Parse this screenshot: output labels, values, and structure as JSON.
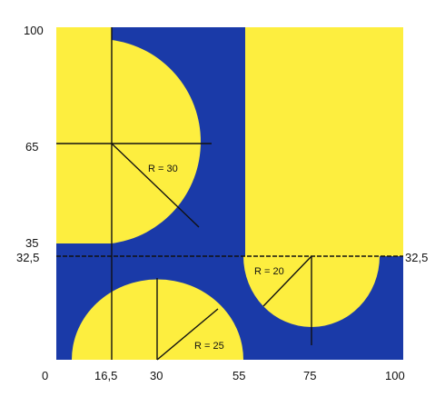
{
  "colors": {
    "background": "#1a3aa8",
    "fill": "#fdee3f",
    "line": "#111111"
  },
  "diagram": {
    "x_range": [
      0,
      100
    ],
    "y_range": [
      0,
      100
    ],
    "x_ticks": [
      "0",
      "16,5",
      "30",
      "55",
      "75",
      "100"
    ],
    "y_ticks_left": [
      "100",
      "65",
      "35",
      "32,5"
    ],
    "y_tick_right": "32,5",
    "labels": {
      "r30": "R = 30",
      "r25": "R = 25",
      "r20": "R = 20"
    }
  }
}
